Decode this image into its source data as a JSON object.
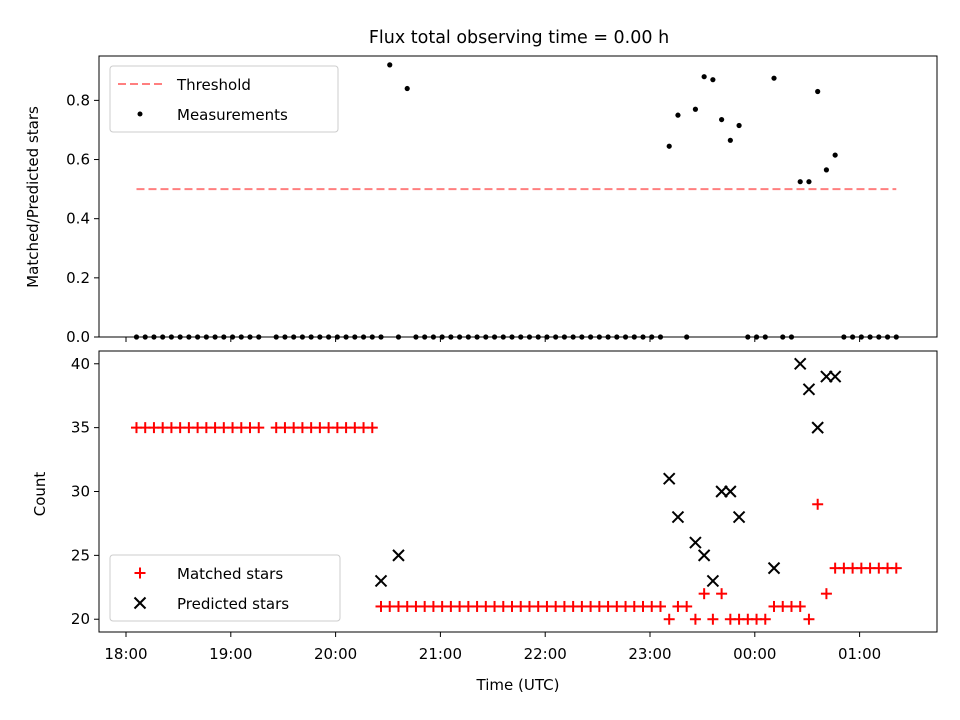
{
  "figure": {
    "title": "Flux total observing time = 0.00 h",
    "xlabel": "Time (UTC)"
  },
  "colors": {
    "threshold": "#ff7f7f",
    "measurement": "#000000",
    "matched": "#ff0000",
    "predicted": "#000000"
  },
  "chart_data": [
    {
      "type": "scatter",
      "ylabel": "Matched/Predicted stars",
      "ylim": [
        0,
        0.95
      ],
      "yticks": [
        0.0,
        0.2,
        0.4,
        0.6,
        0.8
      ],
      "ytick_labels": [
        "0.0",
        "0.2",
        "0.4",
        "0.6",
        "0.8"
      ],
      "x_axis_type": "time (hours since 18:00 UTC)",
      "xlim_time": [
        "17:50",
        "01:50"
      ],
      "legend_position": "upper left",
      "series": [
        {
          "name": "Threshold",
          "kind": "line",
          "style": "dashed",
          "x": [
            "18:06",
            "01:21"
          ],
          "y": [
            0.5,
            0.5
          ]
        },
        {
          "name": "Measurements",
          "kind": "scatter",
          "marker": "dot",
          "x": [
            "18:06",
            "18:11",
            "18:16",
            "18:21",
            "18:26",
            "18:31",
            "18:36",
            "18:41",
            "18:46",
            "18:51",
            "18:56",
            "19:01",
            "19:06",
            "19:11",
            "19:16",
            "19:26",
            "19:31",
            "19:36",
            "19:41",
            "19:46",
            "19:51",
            "19:56",
            "20:01",
            "20:06",
            "20:11",
            "20:16",
            "20:21",
            "20:26",
            "20:31",
            "20:36",
            "20:41",
            "20:46",
            "20:51",
            "20:56",
            "21:01",
            "21:06",
            "21:11",
            "21:16",
            "21:21",
            "21:26",
            "21:31",
            "21:36",
            "21:41",
            "21:46",
            "21:51",
            "21:56",
            "22:01",
            "22:06",
            "22:11",
            "22:16",
            "22:21",
            "22:26",
            "22:31",
            "22:36",
            "22:41",
            "22:46",
            "22:51",
            "22:56",
            "23:01",
            "23:06",
            "23:11",
            "23:16",
            "23:21",
            "23:26",
            "23:31",
            "23:36",
            "23:41",
            "23:46",
            "23:51",
            "23:56",
            "00:01",
            "00:06",
            "00:11",
            "00:16",
            "00:21",
            "00:26",
            "00:31",
            "00:36",
            "00:41",
            "00:46",
            "00:51",
            "00:56",
            "01:01",
            "01:06",
            "01:11",
            "01:16",
            "01:21"
          ],
          "y": [
            0,
            0,
            0,
            0,
            0,
            0,
            0,
            0,
            0,
            0,
            0,
            0,
            0,
            0,
            0,
            0,
            0,
            0,
            0,
            0,
            0,
            0,
            0,
            0,
            0,
            0,
            0,
            0,
            0.92,
            0,
            0.84,
            0,
            0,
            0,
            0,
            0,
            0,
            0,
            0,
            0,
            0,
            0,
            0,
            0,
            0,
            0,
            0,
            0,
            0,
            0,
            0,
            0,
            0,
            0,
            0,
            0,
            0,
            0,
            0,
            0,
            0.645,
            0.75,
            0,
            0.77,
            0.88,
            0.87,
            0.735,
            0.665,
            0.715,
            0,
            0,
            0,
            0.875,
            0,
            0,
            0.525,
            0.525,
            0.83,
            0.565,
            0.615,
            0,
            0,
            0,
            0,
            0,
            0,
            0
          ]
        }
      ]
    },
    {
      "type": "scatter",
      "ylabel": "Count",
      "ylim": [
        19,
        41
      ],
      "yticks": [
        20,
        25,
        30,
        35,
        40
      ],
      "ytick_labels": [
        "20",
        "25",
        "30",
        "35",
        "40"
      ],
      "xticks": [
        "18:00",
        "19:00",
        "20:00",
        "21:00",
        "22:00",
        "23:00",
        "00:00",
        "01:00"
      ],
      "xlim_time": [
        "17:50",
        "01:50"
      ],
      "legend_position": "lower left",
      "series": [
        {
          "name": "Matched stars",
          "marker": "plus",
          "x": [
            "18:06",
            "18:11",
            "18:16",
            "18:21",
            "18:26",
            "18:31",
            "18:36",
            "18:41",
            "18:46",
            "18:51",
            "18:56",
            "19:01",
            "19:06",
            "19:11",
            "19:16",
            "19:26",
            "19:31",
            "19:36",
            "19:41",
            "19:46",
            "19:51",
            "19:56",
            "20:01",
            "20:06",
            "20:11",
            "20:16",
            "20:21",
            "20:26",
            "20:31",
            "20:36",
            "20:41",
            "20:46",
            "20:51",
            "20:56",
            "21:01",
            "21:06",
            "21:11",
            "21:16",
            "21:21",
            "21:26",
            "21:31",
            "21:36",
            "21:41",
            "21:46",
            "21:51",
            "21:56",
            "22:01",
            "22:06",
            "22:11",
            "22:16",
            "22:21",
            "22:26",
            "22:31",
            "22:36",
            "22:41",
            "22:46",
            "22:51",
            "22:56",
            "23:01",
            "23:06",
            "23:11",
            "23:16",
            "23:21",
            "23:26",
            "23:31",
            "23:36",
            "23:41",
            "23:46",
            "23:51",
            "23:56",
            "00:01",
            "00:06",
            "00:11",
            "00:16",
            "00:21",
            "00:26",
            "00:31",
            "00:36",
            "00:41",
            "00:46",
            "00:51",
            "00:56",
            "01:01",
            "01:06",
            "01:11",
            "01:16",
            "01:21"
          ],
          "y": [
            35,
            35,
            35,
            35,
            35,
            35,
            35,
            35,
            35,
            35,
            35,
            35,
            35,
            35,
            35,
            35,
            35,
            35,
            35,
            35,
            35,
            35,
            35,
            35,
            35,
            35,
            35,
            21,
            21,
            21,
            21,
            21,
            21,
            21,
            21,
            21,
            21,
            21,
            21,
            21,
            21,
            21,
            21,
            21,
            21,
            21,
            21,
            21,
            21,
            21,
            21,
            21,
            21,
            21,
            21,
            21,
            21,
            21,
            21,
            21,
            20,
            21,
            21,
            20,
            22,
            20,
            22,
            20,
            20,
            20,
            20,
            20,
            21,
            21,
            21,
            21,
            20,
            29,
            22,
            24,
            24,
            24,
            24,
            24,
            24,
            24,
            24
          ]
        },
        {
          "name": "Predicted stars",
          "marker": "x",
          "x": [
            "20:26",
            "20:36",
            "23:11",
            "23:16",
            "23:26",
            "23:31",
            "23:36",
            "23:41",
            "23:46",
            "23:51",
            "00:11",
            "00:26",
            "00:31",
            "00:36",
            "00:41",
            "00:46"
          ],
          "y": [
            23,
            25,
            31,
            28,
            26,
            25,
            23,
            30,
            30,
            28,
            24,
            40,
            38,
            35,
            39,
            39
          ]
        }
      ]
    }
  ]
}
